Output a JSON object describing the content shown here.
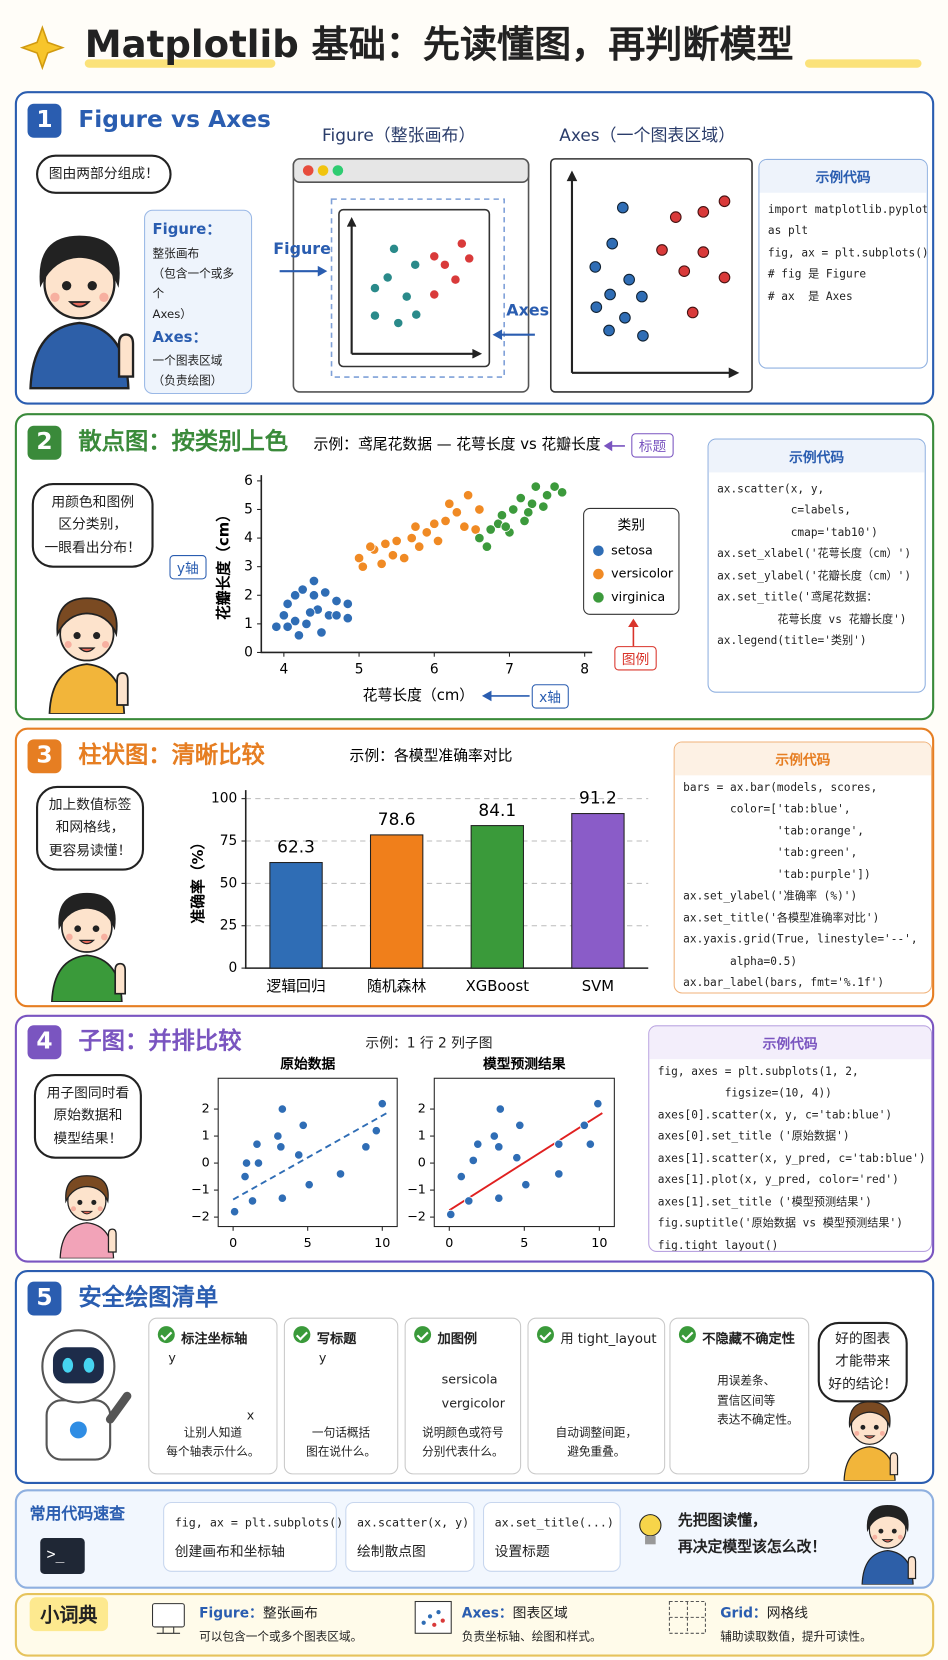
{
  "header": {
    "title": "Matplotlib 基础：先读懂图，再判断模型"
  },
  "s1": {
    "num": "1",
    "title": "Figure vs Axes",
    "bubble": "图由两部分组成！",
    "note": [
      "Figure：",
      "整张画布",
      "（包含一个或多个",
      "Axes）",
      "Axes：",
      "一个图表区域",
      "（负责绘图）"
    ],
    "figure_caption": "Figure（整张画布）",
    "axes_caption": "Axes（一个图表区域）",
    "figure_arrow": "Figure",
    "axes_arrow": "Axes",
    "code_title": "示例代码",
    "code": [
      "import matplotlib.pyplot",
      "as plt",
      "fig, ax = plt.subplots()",
      "# fig 是 Figure",
      "# ax  是 Axes"
    ]
  },
  "s2": {
    "num": "2",
    "title": "散点图：按类别上色",
    "bubble": [
      "用颜色和图例",
      "区分类别，",
      "一眼看出分布！"
    ],
    "y_tag": "y轴",
    "x_tag": "x轴",
    "title_tag": "标题",
    "legend_tag": "图例",
    "code_title": "示例代码",
    "code": [
      "ax.scatter(x, y,",
      "           c=labels,",
      "           cmap='tab10')",
      "ax.set_xlabel('花萼长度（cm）')",
      "ax.set_ylabel('花瓣长度（cm）')",
      "ax.set_title('鸢尾花数据：",
      "         花萼长度 vs 花瓣长度')",
      "ax.legend(title='类别')"
    ]
  },
  "s3": {
    "num": "3",
    "title": "柱状图：清晰比较",
    "bubble": [
      "加上数值标签",
      "和网格线，",
      "更容易读懂！"
    ],
    "code_title": "示例代码",
    "code": [
      "bars = ax.bar(models, scores,",
      "       color=['tab:blue',",
      "              'tab:orange',",
      "              'tab:green',",
      "              'tab:purple'])",
      "ax.set_ylabel('准确率 (%)')",
      "ax.set_title('各模型准确率对比')",
      "ax.yaxis.grid(True, linestyle='--',",
      "       alpha=0.5)",
      "ax.bar_label(bars, fmt='%.1f')"
    ]
  },
  "s4": {
    "num": "4",
    "title": "子图：并排比较",
    "example": "示例：1 行 2 列子图",
    "bubble": [
      "用子图同时看",
      "原始数据和",
      "模型结果！"
    ],
    "code_title": "示例代码",
    "code": [
      "fig, axes = plt.subplots(1, 2,",
      "          figsize=(10, 4))",
      "axes[0].scatter(x, y, c='tab:blue')",
      "axes[0].set_title ('原始数据')",
      "axes[1].scatter(x, y_pred, c='tab:blue')",
      "axes[1].plot(x, y_pred, color='red')",
      "axes[1].set_title ('模型预测结果')",
      "fig.suptitle('原始数据 vs 模型预测结果')",
      "fig.tight_layout()"
    ]
  },
  "s5": {
    "num": "5",
    "title": "安全绘图清单",
    "cards": [
      {
        "title": "标注坐标轴",
        "icon": [
          "y",
          "x"
        ],
        "desc": [
          "让别人知道",
          "每个轴表示什么。"
        ]
      },
      {
        "title": "写标题",
        "icon": [
          "y"
        ],
        "desc": [
          "一句话概括",
          "图在说什么。"
        ]
      },
      {
        "title": "加图例",
        "icon": [
          "sersicola",
          "vergicolor"
        ],
        "desc": [
          "说明颜色或符号",
          "分别代表什么。"
        ]
      },
      {
        "title": "用 tight_layout",
        "desc": [
          "自动调整间距，",
          "避免重叠。"
        ]
      },
      {
        "title": "不隐藏不确定性",
        "desc": [
          "用误差条、",
          "置信区间等",
          "表达不确定性。"
        ]
      }
    ],
    "bubble": [
      "好的图表",
      "才能带来",
      "好的结论！"
    ]
  },
  "quick": {
    "title": "常用代码速查",
    "prompt": ">_",
    "items": [
      {
        "code": "fig, ax = plt.subplots()",
        "desc": "创建画布和坐标轴"
      },
      {
        "code": "ax.scatter(x, y)",
        "desc": "绘制散点图"
      },
      {
        "code": "ax.set_title(...)",
        "desc": "设置标题"
      }
    ],
    "tip": [
      "先把图读懂，",
      "再决定模型该怎么改！"
    ]
  },
  "glossary": {
    "title": "小词典",
    "items": [
      {
        "term": "Figure：",
        "name": "整张画布",
        "desc": "可以包含一个或多个图表区域。"
      },
      {
        "term": "Axes：",
        "name": "图表区域",
        "desc": "负责坐标轴、绘图和样式。"
      },
      {
        "term": "Grid：",
        "name": "网格线",
        "desc": "辅助读取数值，提升可读性。"
      }
    ]
  },
  "chart_data": [
    {
      "type": "scatter",
      "title": "示例：鸢尾花数据 — 花萼长度 vs 花瓣长度",
      "xlabel": "花萼长度（cm）",
      "ylabel": "花瓣长度（cm）",
      "xlim": [
        3.7,
        8.1
      ],
      "ylim": [
        0,
        6.2
      ],
      "xticks": [
        4,
        5,
        6,
        7,
        8
      ],
      "yticks": [
        0,
        1,
        2,
        3,
        4,
        5,
        6
      ],
      "grid": false,
      "legend": "right",
      "legend_title": "类别",
      "series": [
        {
          "name": "setosa",
          "color": "#2f6db5",
          "x": [
            3.9,
            4.0,
            4.05,
            4.15,
            4.25,
            4.4,
            4.55,
            4.7,
            4.85,
            4.85,
            4.2,
            4.3,
            4.45,
            4.6,
            4.4,
            4.15,
            4.05,
            4.7,
            4.5,
            4.35
          ],
          "values": [
            0.9,
            1.3,
            1.7,
            2.0,
            2.2,
            2.5,
            2.1,
            1.8,
            1.7,
            1.2,
            0.6,
            1.0,
            1.5,
            1.3,
            2.0,
            1.1,
            0.9,
            1.3,
            0.7,
            1.4
          ]
        },
        {
          "name": "versicolor",
          "color": "#f08a24",
          "x": [
            5.0,
            5.05,
            5.2,
            5.3,
            5.45,
            5.5,
            5.6,
            5.7,
            5.8,
            5.9,
            6.0,
            6.05,
            6.15,
            6.3,
            6.4,
            6.45,
            6.6,
            5.35,
            5.75,
            6.2,
            5.15,
            6.55
          ],
          "values": [
            3.3,
            3.0,
            3.6,
            3.1,
            3.4,
            3.9,
            3.3,
            4.0,
            3.7,
            4.2,
            4.5,
            3.9,
            4.6,
            4.9,
            4.4,
            5.5,
            5.0,
            3.8,
            4.4,
            5.2,
            3.7,
            4.3
          ]
        },
        {
          "name": "virginica",
          "color": "#3c9a3c",
          "x": [
            6.6,
            6.7,
            6.85,
            6.9,
            7.0,
            7.05,
            7.15,
            7.2,
            7.3,
            7.35,
            7.45,
            7.5,
            7.6,
            7.7,
            6.95,
            7.25,
            6.75
          ],
          "values": [
            4.0,
            3.7,
            4.5,
            4.8,
            4.2,
            5.0,
            5.4,
            4.6,
            5.2,
            5.8,
            5.1,
            5.5,
            5.8,
            5.6,
            4.4,
            4.9,
            4.3
          ]
        }
      ]
    },
    {
      "type": "bar",
      "title": "示例：各模型准确率对比",
      "ylabel": "准确率（%）",
      "categories": [
        "逻辑回归",
        "随机森林",
        "XGBoost",
        "SVM"
      ],
      "values": [
        62.3,
        78.6,
        84.1,
        91.2
      ],
      "colors": [
        "#2f6db5",
        "#f07f1b",
        "#3a9a3a",
        "#8a5cc8"
      ],
      "ylim": [
        0,
        105
      ],
      "yticks": [
        0,
        25,
        50,
        75,
        100
      ],
      "grid": true,
      "grid_style": "dashed"
    },
    {
      "type": "scatter",
      "title": "原始数据",
      "xlim": [
        -1,
        11
      ],
      "ylim": [
        -2.35,
        3.14
      ],
      "xticks": [
        0,
        5,
        10
      ],
      "yticks": [
        {
          "value": -2,
          "label": "−2"
        },
        {
          "value": -1,
          "label": "−1"
        },
        0,
        1,
        2
      ],
      "series": [
        {
          "color": "#2f6db5",
          "x": [
            0.1,
            0.8,
            0.9,
            1.3,
            1.7,
            1.6,
            3.0,
            3.3,
            3.2,
            3.3,
            4.4,
            4.7,
            5.1,
            7.2,
            8.9,
            9.6,
            10.0
          ],
          "values": [
            -1.8,
            -0.5,
            0.0,
            -1.4,
            0.0,
            0.7,
            1.0,
            2.0,
            0.6,
            -1.3,
            0.3,
            1.4,
            -0.8,
            -0.4,
            0.6,
            1.2,
            2.2
          ]
        }
      ],
      "lines": [
        {
          "color": "#2f6db5",
          "style": "dashed",
          "x": [
            0,
            10.3
          ],
          "values": [
            -1.35,
            1.85
          ]
        }
      ]
    },
    {
      "type": "scatter",
      "title": "模型预测结果",
      "xlim": [
        -1,
        11
      ],
      "ylim": [
        -2.35,
        3.14
      ],
      "xticks": [
        0,
        5,
        10
      ],
      "yticks": [
        {
          "value": -2,
          "label": "−2"
        },
        {
          "value": -1,
          "label": "−1"
        },
        0,
        1,
        2
      ],
      "series": [
        {
          "color": "#2f6db5",
          "x": [
            0.1,
            0.8,
            1.3,
            1.6,
            1.9,
            3.0,
            3.4,
            3.3,
            3.3,
            4.5,
            4.7,
            5.1,
            7.3,
            7.3,
            9.0,
            9.4,
            9.9
          ],
          "values": [
            -1.9,
            -0.5,
            -1.4,
            0.1,
            0.7,
            1.0,
            2.0,
            0.6,
            -1.3,
            0.2,
            1.4,
            -0.8,
            0.7,
            -0.4,
            1.4,
            0.7,
            2.2
          ]
        }
      ],
      "lines": [
        {
          "color": "#e02020",
          "style": "solid",
          "x": [
            0,
            10.2
          ],
          "values": [
            -1.75,
            1.85
          ]
        }
      ]
    }
  ]
}
